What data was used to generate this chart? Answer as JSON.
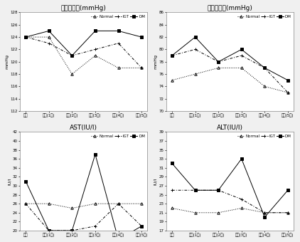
{
  "subplot_titles": [
    "수충기혁압(mmHg)",
    "이완기혁압(mmHg)",
    "AST(IU/l)",
    "ALT(IU/l)"
  ],
  "legend_labels": [
    "Normal",
    "IGT",
    "DM"
  ],
  "x_labels": [
    "기존",
    "추적(1기)",
    "추적(2기)",
    "추적(3기)",
    "추적(4기)",
    "추적(5기)"
  ],
  "systolic": {
    "normal": [
      124.0,
      124.0,
      118.0,
      121.0,
      119.0,
      119.0
    ],
    "igt": [
      124.0,
      123.0,
      121.0,
      122.0,
      123.0,
      119.0
    ],
    "dm": [
      124.0,
      125.0,
      121.0,
      125.0,
      125.0,
      124.0
    ]
  },
  "diastolic": {
    "normal": [
      75.0,
      76.0,
      77.0,
      77.0,
      74.0,
      73.0
    ],
    "igt": [
      79.0,
      80.0,
      78.0,
      79.0,
      77.0,
      73.0
    ],
    "dm": [
      79.0,
      82.0,
      78.0,
      80.0,
      77.0,
      75.0
    ]
  },
  "ast": {
    "normal": [
      26.0,
      26.0,
      25.0,
      26.0,
      26.0,
      26.0
    ],
    "igt": [
      26.0,
      20.0,
      20.0,
      21.0,
      26.0,
      21.0
    ],
    "dm": [
      31.0,
      20.0,
      20.0,
      37.0,
      18.0,
      21.0
    ]
  },
  "alt": {
    "normal": [
      22.0,
      21.0,
      21.0,
      22.0,
      21.0,
      21.0
    ],
    "igt": [
      26.0,
      26.0,
      26.0,
      24.0,
      21.0,
      21.0
    ],
    "dm": [
      32.0,
      26.0,
      26.0,
      33.0,
      20.0,
      26.0
    ]
  },
  "ylims": {
    "systolic": [
      112,
      128
    ],
    "diastolic": [
      70,
      86
    ],
    "ast": [
      20,
      42
    ],
    "alt": [
      17,
      39
    ]
  },
  "yticks": {
    "systolic": [
      112,
      114,
      116,
      118,
      120,
      122,
      124,
      126,
      128
    ],
    "diastolic": [
      70,
      72,
      74,
      76,
      78,
      80,
      82,
      84,
      86
    ],
    "ast": [
      20,
      22,
      24,
      26,
      28,
      30,
      32,
      34,
      36,
      38,
      40,
      42
    ],
    "alt": [
      17,
      19,
      21,
      23,
      25,
      27,
      29,
      31,
      33,
      35,
      37,
      39
    ]
  },
  "ylabels": {
    "systolic": "mmHg",
    "diastolic": "mmHg",
    "ast": "IU/l",
    "alt": "IU/l"
  },
  "line_color": "#555555",
  "bg_color": "#f0f0f0",
  "plot_bg": "#ffffff",
  "tick_fontsize": 4.0,
  "title_fontsize": 6.5,
  "legend_fontsize": 4.0,
  "ylabel_fontsize": 4.5
}
